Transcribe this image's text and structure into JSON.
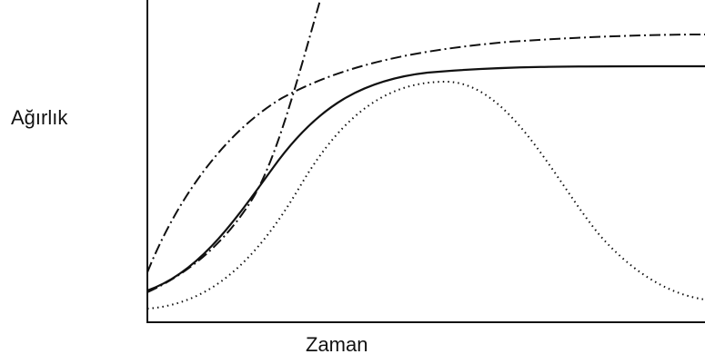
{
  "axes": {
    "y_label": "Ağırlık",
    "x_label": "Zaman"
  }
}
